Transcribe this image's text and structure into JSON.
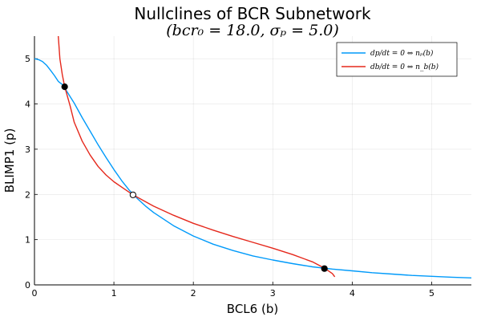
{
  "chart_data": {
    "type": "line",
    "title": "Nullclines of BCR Subnetwork",
    "subtitle": "(bcr₀ = 18.0, σₚ = 5.0)",
    "xlabel": "BCL6 (b)",
    "ylabel": "BLIMP1 (p)",
    "xlim": [
      0,
      5.5
    ],
    "ylim": [
      0,
      5.5
    ],
    "xticks": [
      "0",
      "1",
      "2",
      "3",
      "4",
      "5"
    ],
    "yticks": [
      "0",
      "1",
      "2",
      "3",
      "4",
      "5"
    ],
    "grid": true,
    "legend_position": "top-right",
    "series": [
      {
        "name": "dp/dt = 0 ⇔ nₚ(b)",
        "color": "#009AFA",
        "x": [
          0.0,
          0.05,
          0.1,
          0.15,
          0.2,
          0.25,
          0.3,
          0.35,
          0.4,
          0.5,
          0.6,
          0.7,
          0.8,
          0.9,
          1.0,
          1.1,
          1.2,
          1.3,
          1.4,
          1.5,
          1.75,
          2.0,
          2.25,
          2.5,
          2.75,
          3.0,
          3.25,
          3.5,
          3.75,
          4.0,
          4.25,
          4.5,
          4.75,
          5.0,
          5.25,
          5.5
        ],
        "y": [
          5.0,
          4.98,
          4.94,
          4.86,
          4.75,
          4.63,
          4.5,
          4.43,
          4.3,
          4.02,
          3.7,
          3.4,
          3.1,
          2.82,
          2.55,
          2.3,
          2.08,
          1.9,
          1.74,
          1.6,
          1.31,
          1.08,
          0.9,
          0.76,
          0.64,
          0.55,
          0.47,
          0.4,
          0.35,
          0.31,
          0.27,
          0.24,
          0.21,
          0.19,
          0.17,
          0.155
        ]
      },
      {
        "name": "db/dt = 0 ⇔ n_b(b)",
        "color": "#E5281C",
        "x": [
          0.3,
          0.32,
          0.35,
          0.38,
          0.45,
          0.5,
          0.6,
          0.7,
          0.8,
          0.9,
          1.0,
          1.1,
          1.24,
          1.5,
          1.75,
          2.0,
          2.25,
          2.5,
          2.75,
          3.0,
          3.25,
          3.5,
          3.65,
          3.75,
          3.78
        ],
        "y": [
          5.5,
          5.0,
          4.65,
          4.38,
          3.95,
          3.6,
          3.18,
          2.87,
          2.62,
          2.43,
          2.28,
          2.16,
          1.99,
          1.74,
          1.54,
          1.36,
          1.21,
          1.07,
          0.94,
          0.81,
          0.67,
          0.51,
          0.37,
          0.25,
          0.18
        ]
      }
    ],
    "points": [
      {
        "x": 0.38,
        "y": 4.38,
        "style": "filled"
      },
      {
        "x": 1.24,
        "y": 1.99,
        "style": "open"
      },
      {
        "x": 3.65,
        "y": 0.36,
        "style": "filled"
      }
    ]
  }
}
